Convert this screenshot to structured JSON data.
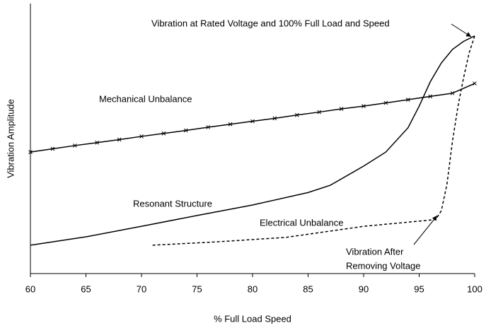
{
  "chart_data": {
    "type": "line",
    "xlabel": "% Full Load Speed",
    "ylabel": "Vibration Amplitude",
    "xlim": [
      60,
      100
    ],
    "xticks": [
      60,
      65,
      70,
      75,
      80,
      85,
      90,
      95,
      100
    ],
    "ylim": [
      0,
      100
    ],
    "series": [
      {
        "name": "Mechanical Unbalance",
        "color": "#000000",
        "style": "solid",
        "markers": true,
        "x": [
          60,
          62,
          64,
          66,
          68,
          70,
          72,
          74,
          76,
          78,
          80,
          82,
          84,
          86,
          88,
          90,
          92,
          94,
          96,
          98,
          100
        ],
        "values": [
          45,
          46.2,
          47.4,
          48.5,
          49.6,
          50.8,
          51.9,
          53,
          54.2,
          55.3,
          56.4,
          57.5,
          58.7,
          59.8,
          61,
          62,
          63.2,
          64.4,
          65.6,
          66.8,
          70.4
        ]
      },
      {
        "name": "Resonant Structure",
        "color": "#000000",
        "style": "solid",
        "markers": false,
        "x": [
          60,
          65,
          70,
          75,
          80,
          85,
          87,
          90,
          92,
          94,
          95,
          96,
          97,
          98,
          99,
          100
        ],
        "values": [
          10.5,
          13.6,
          17.5,
          21.5,
          25.4,
          30,
          32.7,
          39.8,
          45,
          54,
          62,
          71,
          78,
          83,
          86,
          88
        ]
      },
      {
        "name": "Electrical Unbalance",
        "color": "#000000",
        "style": "dashed",
        "markers": false,
        "x": [
          71,
          77,
          83,
          90,
          96.5,
          97,
          97.5,
          98,
          98.5,
          99,
          99.5,
          100
        ],
        "values": [
          10.5,
          11.8,
          13.4,
          17.5,
          20,
          23.3,
          33,
          49,
          62,
          72.5,
          81.7,
          88
        ]
      }
    ],
    "annotations": [
      "Vibration at Rated Voltage and 100% Full Load and Speed",
      "Vibration After",
      "Removing Voltage"
    ]
  }
}
